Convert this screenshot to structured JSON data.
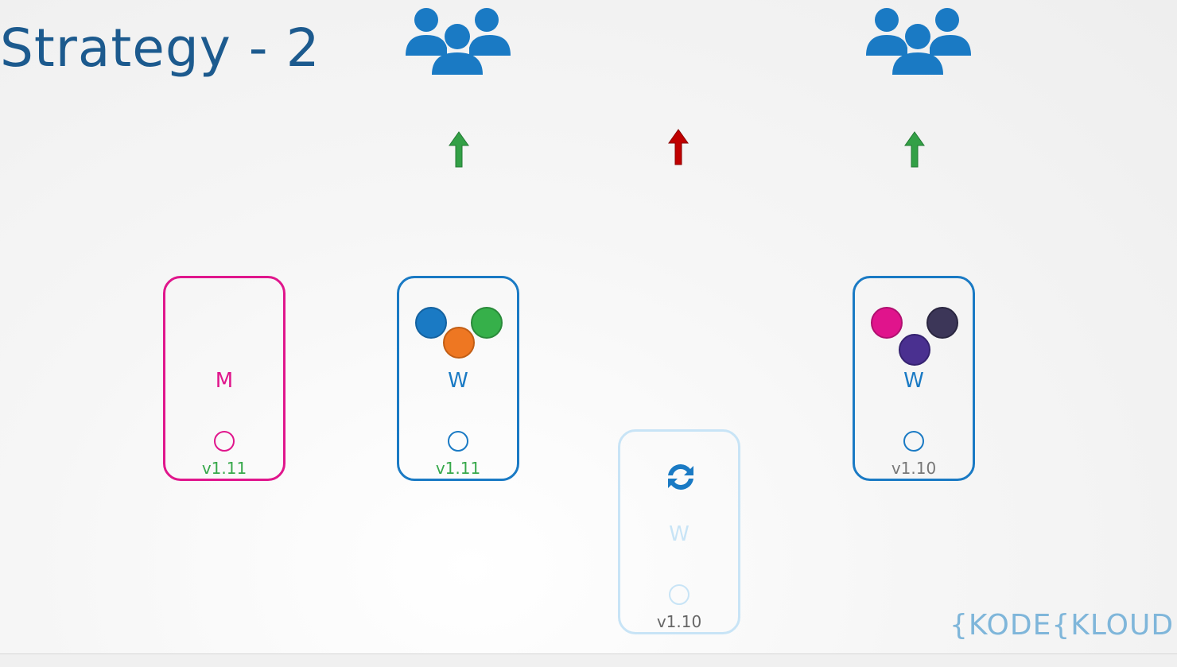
{
  "slide": {
    "title": "Strategy - 2"
  },
  "user_groups": [
    {
      "icon": "users-group-icon",
      "color": "#1a7ac4"
    },
    {
      "icon": "users-group-icon",
      "color": "#1a7ac4"
    }
  ],
  "arrows": [
    {
      "icon": "up-arrow-icon",
      "status": "ok",
      "color": "#33a046"
    },
    {
      "icon": "up-arrow-icon",
      "status": "down",
      "color": "#c00000"
    },
    {
      "icon": "up-arrow-icon",
      "status": "ok",
      "color": "#33a046"
    }
  ],
  "nodes": {
    "master": {
      "letter": "M",
      "version": "v1.11",
      "border_color": "#e0168c",
      "version_color": "#36a84a"
    },
    "worker1": {
      "letter": "W",
      "version": "v1.11",
      "border_color": "#1a7ac4",
      "version_color": "#36a84a",
      "pods": [
        "#1a7ac4",
        "#36b04a",
        "#ee7722"
      ]
    },
    "worker2": {
      "letter": "W",
      "version": "v1.10",
      "border_color": "#c8e4f6",
      "version_color": "#666666",
      "icon": "refresh-icon",
      "state": "upgrading"
    },
    "worker3": {
      "letter": "W",
      "version": "v1.10",
      "border_color": "#1a7ac4",
      "version_color": "#777777",
      "pods": [
        "#e0148c",
        "#3c3658",
        "#4a3090"
      ]
    }
  },
  "logo": {
    "brace_left": "{",
    "part1": "KODE",
    "brace_mid": "{",
    "part2": "KLOUD"
  }
}
